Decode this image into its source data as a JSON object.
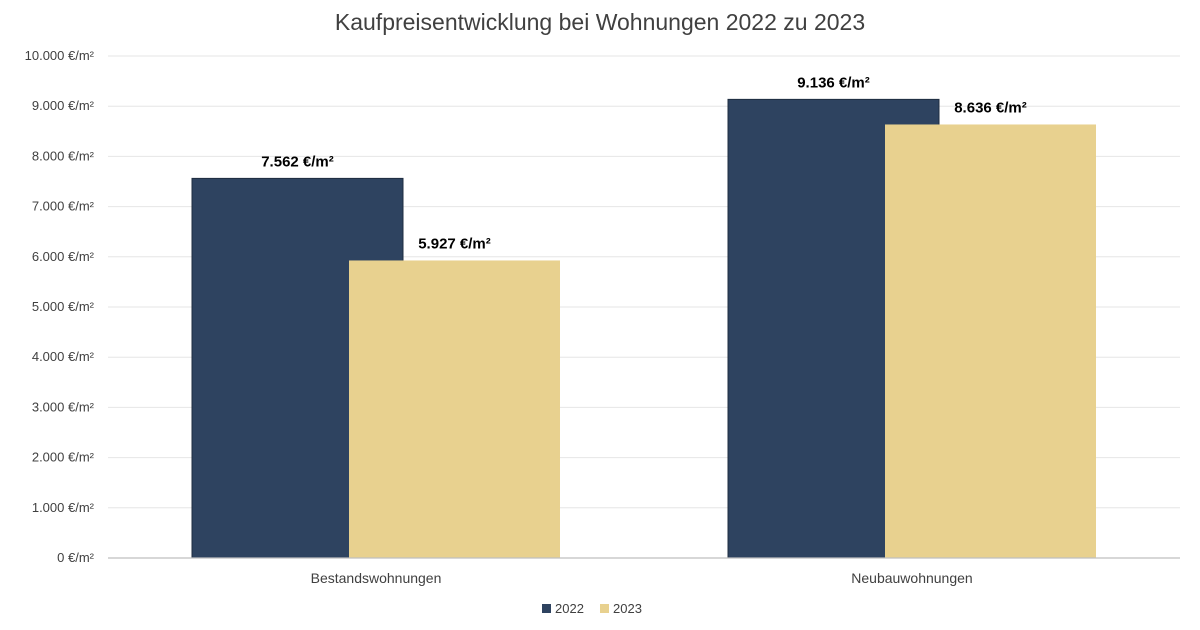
{
  "chart_data": {
    "type": "bar",
    "title": "Kaufpreisentwicklung bei Wohnungen 2022 zu 2023",
    "categories": [
      "Bestandswohnungen",
      "Neubauwohnungen"
    ],
    "series": [
      {
        "name": "2022",
        "values": [
          7562,
          9136
        ],
        "labels": [
          "7.562 €/m²",
          "9.136 €/m²"
        ],
        "color": "#2e4360"
      },
      {
        "name": "2023",
        "values": [
          5927,
          8636
        ],
        "labels": [
          "5.927 €/m²",
          "8.636 €/m²"
        ],
        "color": "#e8d18f"
      }
    ],
    "ylim": [
      0,
      10000
    ],
    "yticks": [
      0,
      1000,
      2000,
      3000,
      4000,
      5000,
      6000,
      7000,
      8000,
      9000,
      10000
    ],
    "ytick_labels": [
      "0 €/m²",
      "1.000 €/m²",
      "2.000 €/m²",
      "3.000 €/m²",
      "4.000 €/m²",
      "5.000 €/m²",
      "6.000 €/m²",
      "7.000 €/m²",
      "8.000 €/m²",
      "9.000 €/m²",
      "10.000 €/m²"
    ],
    "grid": true,
    "legend": "bottom-center"
  }
}
